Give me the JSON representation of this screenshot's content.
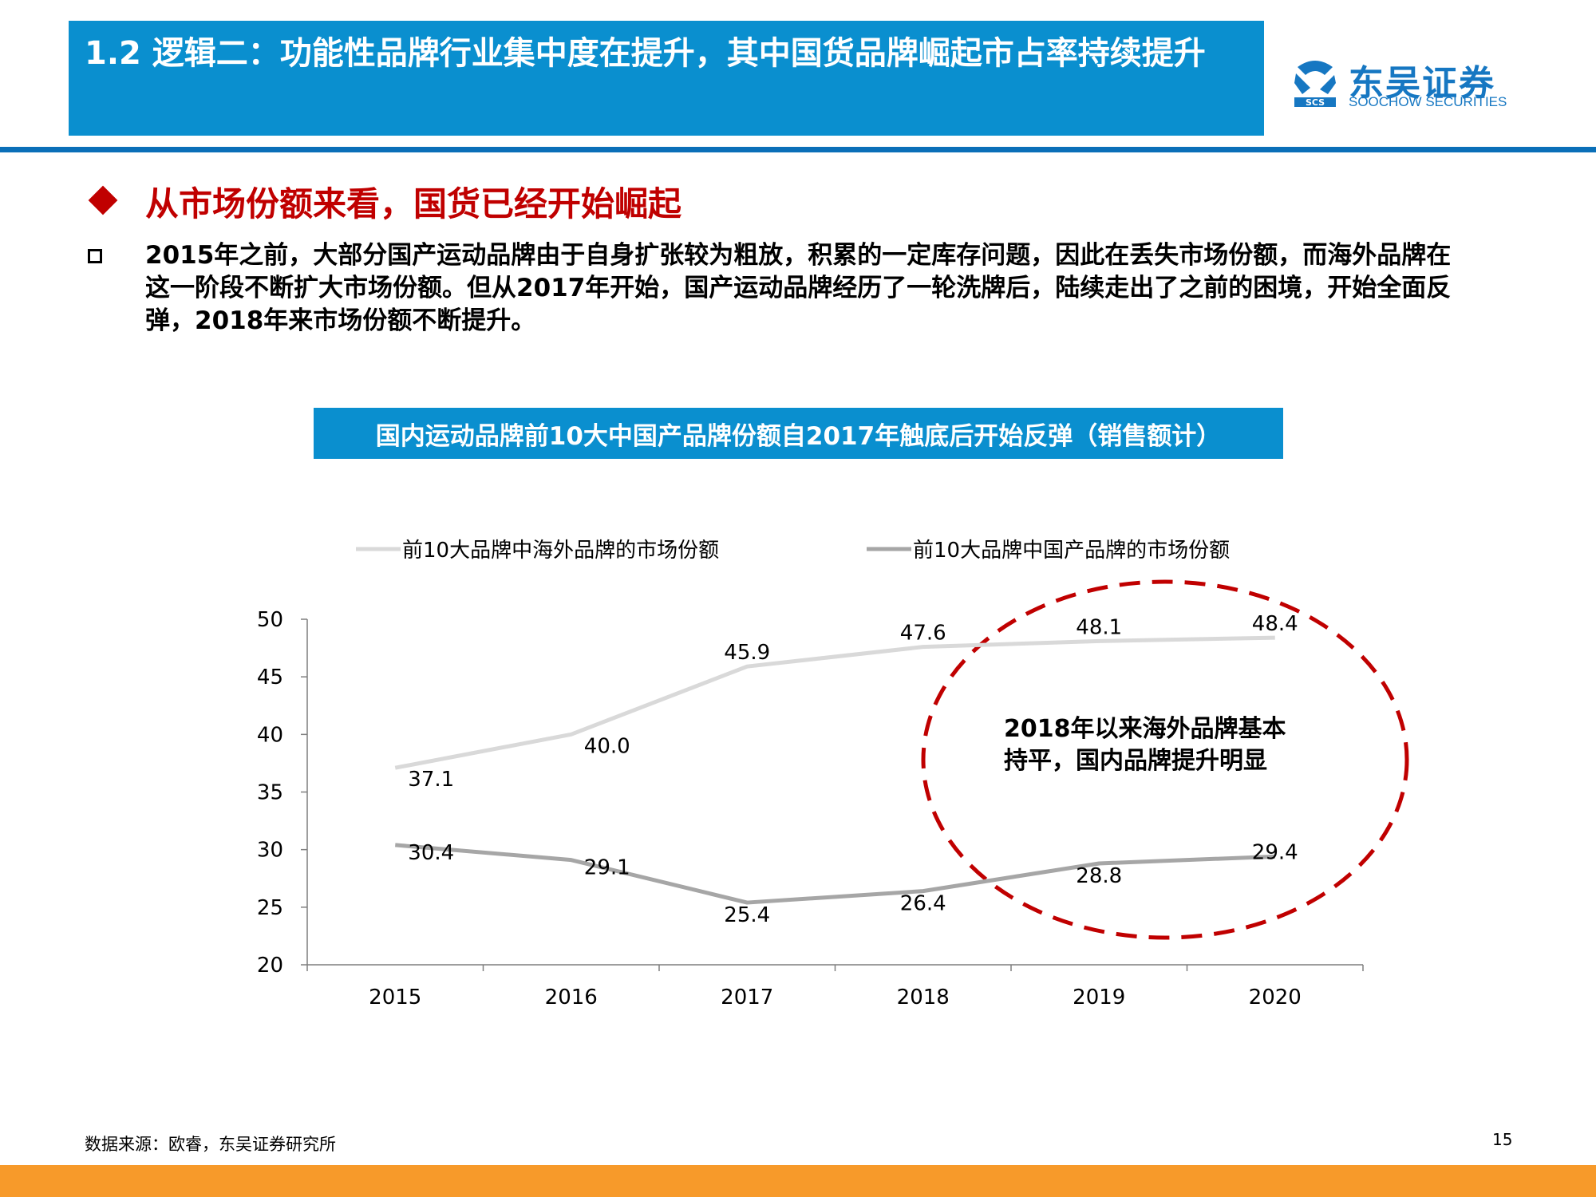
{
  "header": {
    "title": "1.2 逻辑二：功能性品牌行业集中度在提升，其中国货品牌崛起市占率持续提升",
    "logo_cn": "东吴证券",
    "logo_en": "SOOCHOW SECURITIES",
    "logo_mark_text": "SCS"
  },
  "section": {
    "heading": "从市场份额来看，国货已经开始崛起",
    "paragraph": "2015年之前，大部分国产运动品牌由于自身扩张较为粗放，积累的一定库存问题，因此在丢失市场份额，而海外品牌在这一阶段不断扩大市场份额。但从2017年开始，国产运动品牌经历了一轮洗牌后，陆续走出了之前的困境，开始全面反弹，2018年来市场份额不断提升。"
  },
  "chart_data": {
    "type": "line",
    "title": "国内运动品牌前10大中国产品牌份额自2017年触底后开始反弹（销售额计）",
    "categories": [
      "2015",
      "2016",
      "2017",
      "2018",
      "2019",
      "2020"
    ],
    "series": [
      {
        "name": "前10大品牌中海外品牌的市场份额",
        "values": [
          37.1,
          40.0,
          45.9,
          47.6,
          48.1,
          48.4
        ],
        "color": "#d9d9d9",
        "labels": [
          "37.1",
          "40.0",
          "45.9",
          "47.6",
          "48.1",
          "48.4"
        ]
      },
      {
        "name": "前10大品牌中国产品牌的市场份额",
        "values": [
          30.4,
          29.1,
          25.4,
          26.4,
          28.8,
          29.4
        ],
        "color": "#a6a6a6",
        "labels": [
          "30.4",
          "29.1",
          "25.4",
          "26.4",
          "28.8",
          "29.4"
        ]
      }
    ],
    "yticks": [
      "20",
      "25",
      "30",
      "35",
      "40",
      "45",
      "50"
    ],
    "ylim": [
      20,
      50
    ],
    "grid": false,
    "legend_position": "top",
    "annotation": {
      "lines": [
        "2018年以来海外品牌基本",
        "持平，国内品牌提升明显"
      ],
      "ellipse_color": "#c00000"
    }
  },
  "footer": {
    "source": "数据来源：欧睿，东吴证券研究所",
    "page": "15",
    "bar_color": "#f79a2a"
  }
}
